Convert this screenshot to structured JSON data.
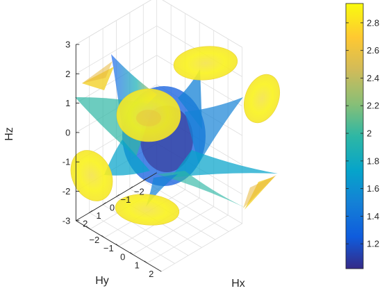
{
  "chart_data": {
    "type": "surface3d",
    "title": "",
    "axes": {
      "x": {
        "label": "Hx",
        "range": [
          -3,
          3
        ],
        "ticks": [
          -2,
          -1,
          0,
          1,
          2
        ]
      },
      "y": {
        "label": "Hy",
        "range": [
          -3,
          3
        ],
        "ticks": [
          -2,
          -1,
          0,
          1,
          2
        ]
      },
      "z": {
        "label": "Hz",
        "range": [
          -3,
          3
        ],
        "ticks": [
          -3,
          -2,
          -1,
          0,
          1,
          2,
          3
        ]
      }
    },
    "grid": true,
    "box": "back-panels",
    "colorbar": {
      "colormap": "parula",
      "location": "right",
      "range": [
        1.02,
        2.94
      ],
      "ticks": [
        1.2,
        1.4,
        1.6,
        1.8,
        2,
        2.2,
        2.4,
        2.6,
        2.8
      ]
    },
    "surface": {
      "description": "six-lobed star-shaped translucent surface colored by magnitude",
      "lobes": [
        {
          "direction": [
            1,
            0,
            0
          ]
        },
        {
          "direction": [
            -1,
            0,
            0
          ]
        },
        {
          "direction": [
            0,
            1,
            0
          ]
        },
        {
          "direction": [
            0,
            -1,
            0
          ]
        },
        {
          "direction": [
            0,
            0,
            1
          ]
        },
        {
          "direction": [
            0,
            0,
            -1
          ]
        }
      ],
      "color_range": [
        1.02,
        2.94
      ],
      "opacity": 0.7
    }
  },
  "colors": {
    "parula": [
      "#352a87",
      "#0f5cdd",
      "#1481d6",
      "#06a4ca",
      "#2eb7a4",
      "#87bf77",
      "#d1bb59",
      "#fec832",
      "#f9fb0e"
    ],
    "grid": "#dedede",
    "axis": "#262626"
  }
}
